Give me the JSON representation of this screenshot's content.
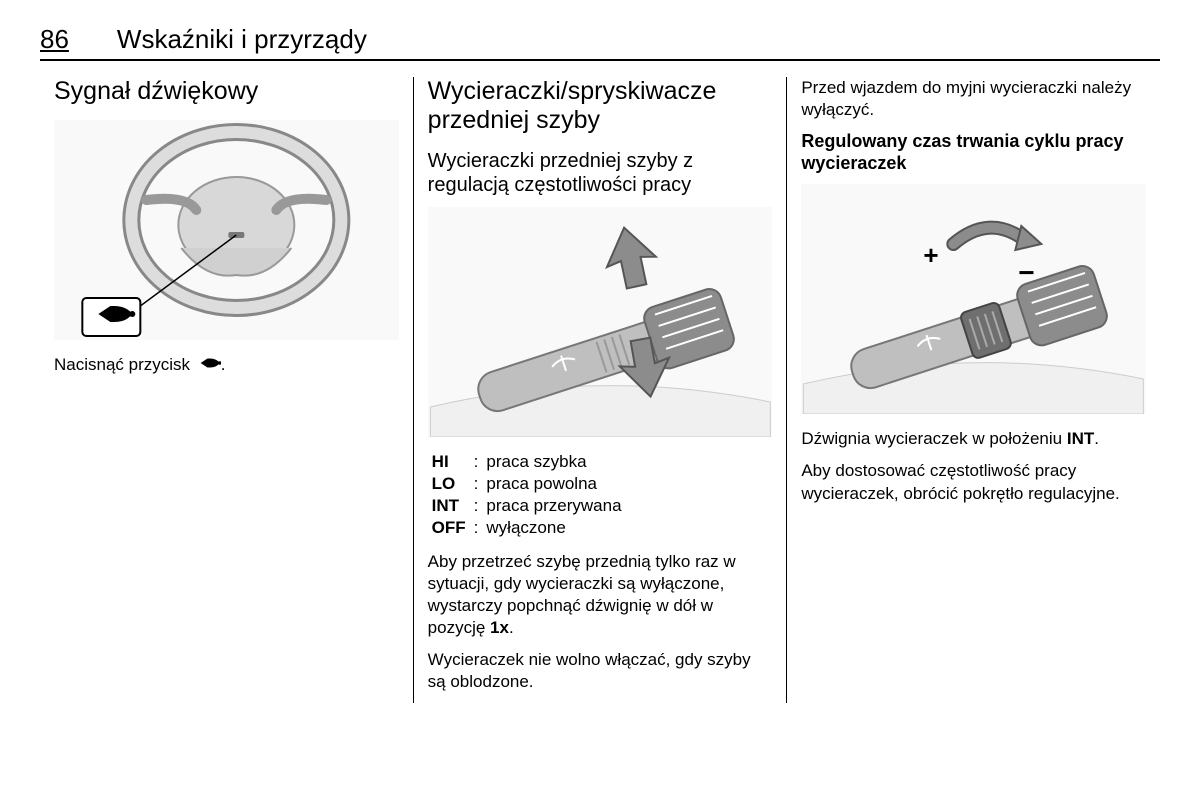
{
  "page": {
    "number": "86",
    "header": "Wskaźniki i przyrządy"
  },
  "col1": {
    "title": "Sygnał dźwiękowy",
    "caption_pre": "Nacisnąć przycisk ",
    "caption_post": "."
  },
  "col2": {
    "title": "Wycieraczki/spryskiwacze przedniej szyby",
    "subtitle": "Wycieraczki przedniej szyby z regulacją częstotliwości pracy",
    "defs": [
      {
        "k": "HI",
        "sep": ":",
        "v": "praca szybka"
      },
      {
        "k": "LO",
        "sep": ":",
        "v": "praca powolna"
      },
      {
        "k": "INT",
        "sep": ":",
        "v": "praca przerywana"
      },
      {
        "k": "OFF",
        "sep": ":",
        "v": "wyłączone"
      }
    ],
    "p1_pre": "Aby przetrzeć szybę przednią tylko raz w sytuacji, gdy wycieraczki są wyłączone, wystarczy popchnąć dźwignię w dół w pozycję ",
    "p1_bold": "1x",
    "p1_post": ".",
    "p2": "Wycieraczek nie wolno włączać, gdy szyby są oblodzone."
  },
  "col3": {
    "p1": "Przed wjazdem do myjni wycieraczki należy wyłączyć.",
    "subtitle": "Regulowany czas trwania cyklu pracy wycieraczek",
    "p2_pre": "Dźwignia wycieraczek w położeniu ",
    "p2_bold": "INT",
    "p2_post": ".",
    "p3": "Aby dostosować częstotliwość pracy wycieraczek, obrócić pokrętło regulacyjne."
  },
  "colors": {
    "line": "#666666",
    "fill_light": "#e8e8e8",
    "fill_mid": "#bfbfbf",
    "fill_dark": "#8c8c8c",
    "black": "#000000",
    "white": "#ffffff"
  }
}
